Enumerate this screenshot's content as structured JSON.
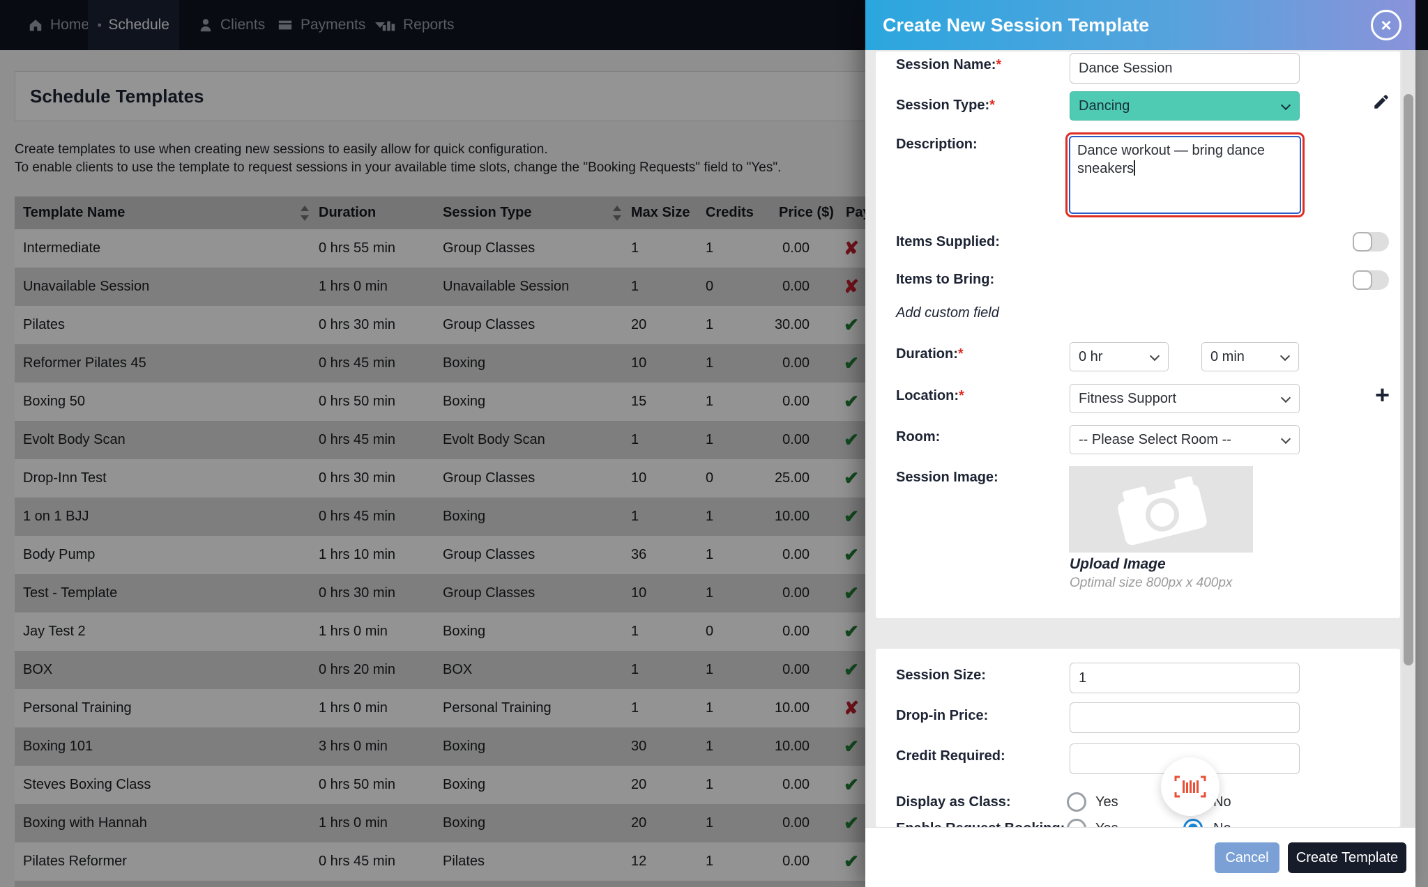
{
  "nav": {
    "items": [
      {
        "label": "Home",
        "icon": "home-icon",
        "active": false
      },
      {
        "label": "Schedule",
        "icon": "calendar-icon",
        "active": true
      },
      {
        "label": "Clients",
        "icon": "person-icon",
        "active": false
      },
      {
        "label": "Payments",
        "icon": "credit-card-icon",
        "active": false
      },
      {
        "label": "Reports",
        "icon": "bar-chart-icon",
        "active": false
      }
    ]
  },
  "page": {
    "title": "Schedule Templates",
    "intro_line1": "Create templates to use when creating new sessions to easily allow for quick configuration.",
    "intro_line2": "To enable clients to use the template to request sessions in your available time slots, change the \"Booking Requests\" field to \"Yes\"."
  },
  "table": {
    "columns": [
      "Template Name",
      "Duration",
      "Session Type",
      "Max Size",
      "Credits",
      "Price ($)",
      "Pay"
    ],
    "rows": [
      [
        "Intermediate",
        "0 hrs 55 min",
        "Group Classes",
        "1",
        "1",
        "0.00",
        "no"
      ],
      [
        "Unavailable Session",
        "1 hrs 0 min",
        "Unavailable Session",
        "1",
        "0",
        "0.00",
        "no"
      ],
      [
        "Pilates",
        "0 hrs 30 min",
        "Group Classes",
        "20",
        "1",
        "30.00",
        "yes"
      ],
      [
        "Reformer Pilates 45",
        "0 hrs 45 min",
        "Boxing",
        "10",
        "1",
        "0.00",
        "yes"
      ],
      [
        "Boxing 50",
        "0 hrs 50 min",
        "Boxing",
        "15",
        "1",
        "0.00",
        "yes"
      ],
      [
        "Evolt Body Scan",
        "0 hrs 45 min",
        "Evolt Body Scan",
        "1",
        "1",
        "0.00",
        "yes"
      ],
      [
        "Drop-Inn Test",
        "0 hrs 30 min",
        "Group Classes",
        "10",
        "0",
        "25.00",
        "yes"
      ],
      [
        "1 on 1 BJJ",
        "0 hrs 45 min",
        "Boxing",
        "1",
        "1",
        "10.00",
        "yes"
      ],
      [
        "Body Pump",
        "1 hrs 10 min",
        "Group Classes",
        "36",
        "1",
        "0.00",
        "yes"
      ],
      [
        "Test - Template",
        "0 hrs 30 min",
        "Group Classes",
        "10",
        "1",
        "0.00",
        "yes"
      ],
      [
        "Jay Test 2",
        "1 hrs 0 min",
        "Boxing",
        "1",
        "0",
        "0.00",
        "yes"
      ],
      [
        "BOX",
        "0 hrs 20 min",
        "BOX",
        "1",
        "1",
        "0.00",
        "yes"
      ],
      [
        "Personal Training",
        "1 hrs 0 min",
        "Personal Training",
        "1",
        "1",
        "10.00",
        "no"
      ],
      [
        "Boxing 101",
        "3 hrs 0 min",
        "Boxing",
        "30",
        "1",
        "10.00",
        "yes"
      ],
      [
        "Steves Boxing Class",
        "0 hrs 50 min",
        "Boxing",
        "20",
        "1",
        "0.00",
        "yes"
      ],
      [
        "Boxing with Hannah",
        "1 hrs 0 min",
        "Boxing",
        "20",
        "1",
        "0.00",
        "yes"
      ],
      [
        "Pilates Reformer",
        "0 hrs 45 min",
        "Pilates",
        "12",
        "1",
        "0.00",
        "yes"
      ]
    ]
  },
  "modal": {
    "title": "Create New Session Template",
    "close_glyph": "×",
    "session_name_label": "Session Name:",
    "session_name_value": "Dance Session",
    "session_type_label": "Session Type:",
    "session_type_value": "Dancing",
    "description_label": "Description:",
    "description_value": "Dance workout — bring dance sneakers",
    "items_supplied_label": "Items Supplied:",
    "items_to_bring_label": "Items to Bring:",
    "add_custom_field_label": "Add custom field",
    "duration_label": "Duration:",
    "duration_hr_value": "0 hr",
    "duration_min_value": "0 min",
    "location_label": "Location:",
    "location_value": "Fitness Support",
    "room_label": "Room:",
    "room_value": "-- Please Select Room --",
    "session_image_label": "Session Image:",
    "upload_image_label": "Upload Image",
    "optimal_size_note": "Optimal size 800px x 400px",
    "session_size_label": "Session Size:",
    "session_size_value": "1",
    "dropin_price_label": "Drop-in Price:",
    "dropin_price_value": "",
    "credit_required_label": "Credit Required:",
    "credit_required_value": "",
    "display_as_class_label": "Display as Class:",
    "enable_request_booking_label": "Enable Request Booking:",
    "yes_label": "Yes",
    "no_label": "No",
    "cancel_label": "Cancel",
    "create_label": "Create Template"
  },
  "colors": {
    "header_gradient_start": "#2ba6de",
    "header_gradient_end": "#8a93da",
    "session_type_bg": "#4fcbb4",
    "description_focus_outer": "#e02d22",
    "description_focus_inner": "#2a5bc7",
    "radio_selected": "#1a86d6",
    "barcode_red": "#e94f37",
    "check_green": "#1f7e34",
    "cross_red": "#c11f2e",
    "cancel_button": "#7ba0d6",
    "create_button": "#171c2b",
    "nav_background": "#0f141f"
  }
}
